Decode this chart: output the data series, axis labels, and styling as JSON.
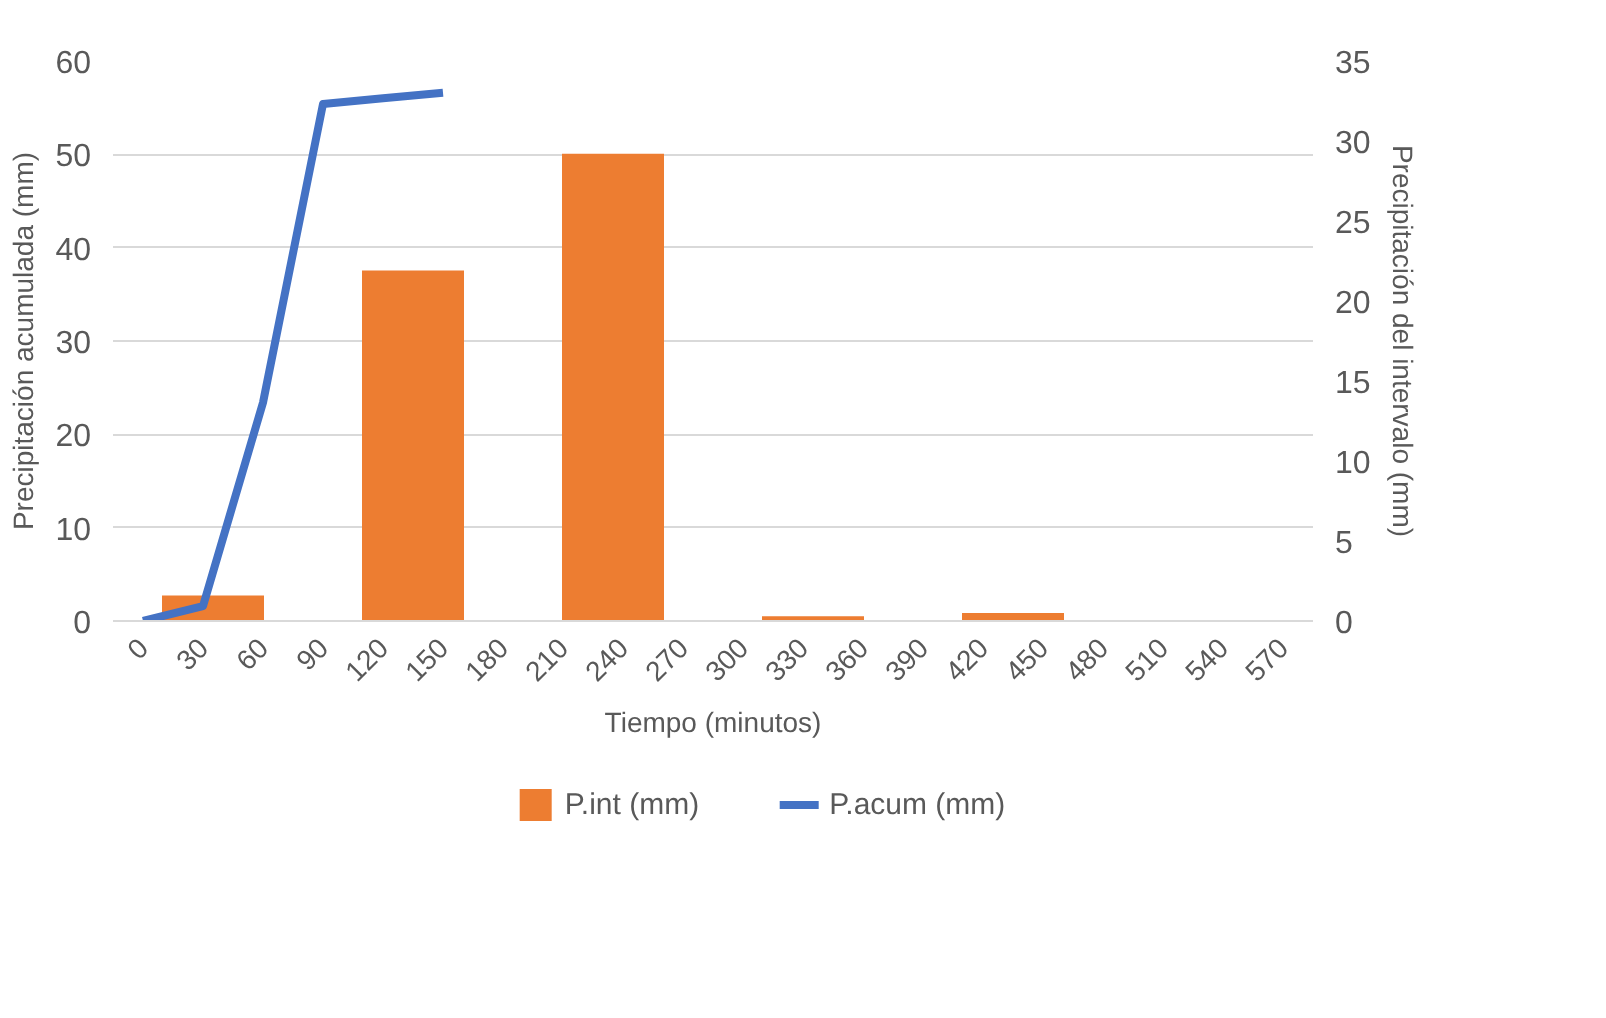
{
  "chart_data": {
    "type": "line",
    "xlabel": "Tiempo (minutos)",
    "ylabel": "Precipitación acumulada (mm)",
    "y2label": "Precipitación del intervalo (mm)",
    "xlim": [
      -15,
      585
    ],
    "xticks": [
      0,
      30,
      60,
      90,
      120,
      150,
      180,
      210,
      240,
      270,
      300,
      330,
      360,
      390,
      420,
      450,
      480,
      510,
      540,
      570
    ],
    "ylim": [
      0,
      60
    ],
    "yticks": [
      0,
      10,
      20,
      30,
      40,
      50,
      60
    ],
    "y2lim": [
      0,
      35
    ],
    "y2ticks": [
      0,
      5,
      10,
      15,
      20,
      25,
      30,
      35
    ],
    "grid": "y",
    "legend": "bottom",
    "series": [
      {
        "name": "P.int (mm)",
        "type": "bar",
        "axis": "y2",
        "color": "#ed7d31",
        "x": [
          35,
          135,
          235,
          335,
          435,
          535
        ],
        "values": [
          1.6,
          21.9,
          29.2,
          0.3,
          0.5,
          0
        ]
      },
      {
        "name": "P.acum (mm)",
        "color": "#4472c4",
        "x": [
          0,
          30,
          60,
          90,
          120,
          150
        ],
        "values": [
          0,
          1.6,
          23.4,
          55.4,
          56,
          56.6
        ]
      }
    ]
  }
}
